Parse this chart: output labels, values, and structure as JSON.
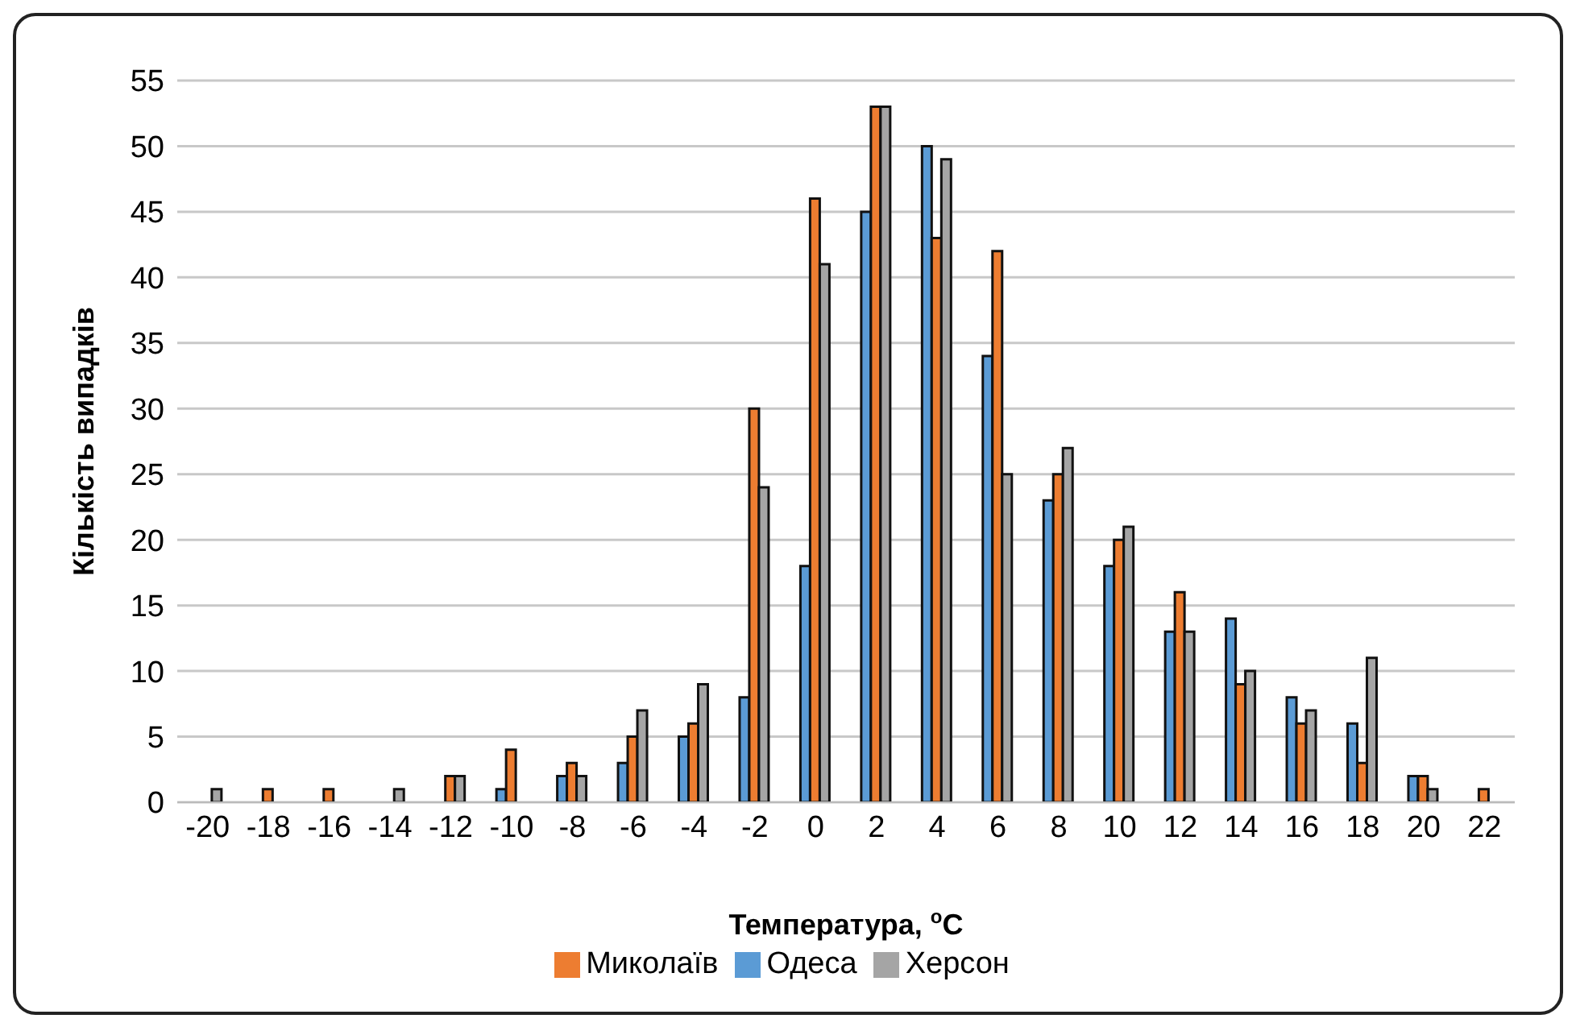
{
  "chart_data": {
    "type": "bar",
    "xlabel": "Температура, $^{o}$C",
    "ylabel": "Кількість випадків",
    "categories": [
      "-20",
      "-18",
      "-16",
      "-14",
      "-12",
      "-10",
      "-8",
      "-6",
      "-4",
      "-2",
      "0",
      "2",
      "4",
      "6",
      "8",
      "10",
      "12",
      "14",
      "16",
      "18",
      "20",
      "22"
    ],
    "series": [
      {
        "name": "Одеса",
        "color": "#5b9bd5",
        "values": [
          0,
          0,
          0,
          0,
          0,
          1,
          2,
          3,
          5,
          8,
          18,
          45,
          50,
          34,
          23,
          18,
          13,
          14,
          8,
          6,
          2,
          0
        ]
      },
      {
        "name": "Миколаїв",
        "color": "#ed7d31",
        "values": [
          0,
          1,
          1,
          0,
          2,
          4,
          3,
          5,
          6,
          30,
          46,
          53,
          43,
          42,
          25,
          20,
          16,
          9,
          6,
          3,
          2,
          1
        ]
      },
      {
        "name": "Херсон",
        "color": "#a5a5a5",
        "values": [
          1,
          0,
          0,
          1,
          2,
          0,
          2,
          7,
          9,
          24,
          41,
          53,
          49,
          25,
          27,
          21,
          13,
          10,
          7,
          11,
          1,
          0
        ]
      }
    ],
    "ylim": [
      0,
      55
    ],
    "yticks": [
      0,
      5,
      10,
      15,
      20,
      25,
      30,
      35,
      40,
      45,
      50,
      55
    ],
    "grid": "y",
    "legend": "bottom"
  }
}
